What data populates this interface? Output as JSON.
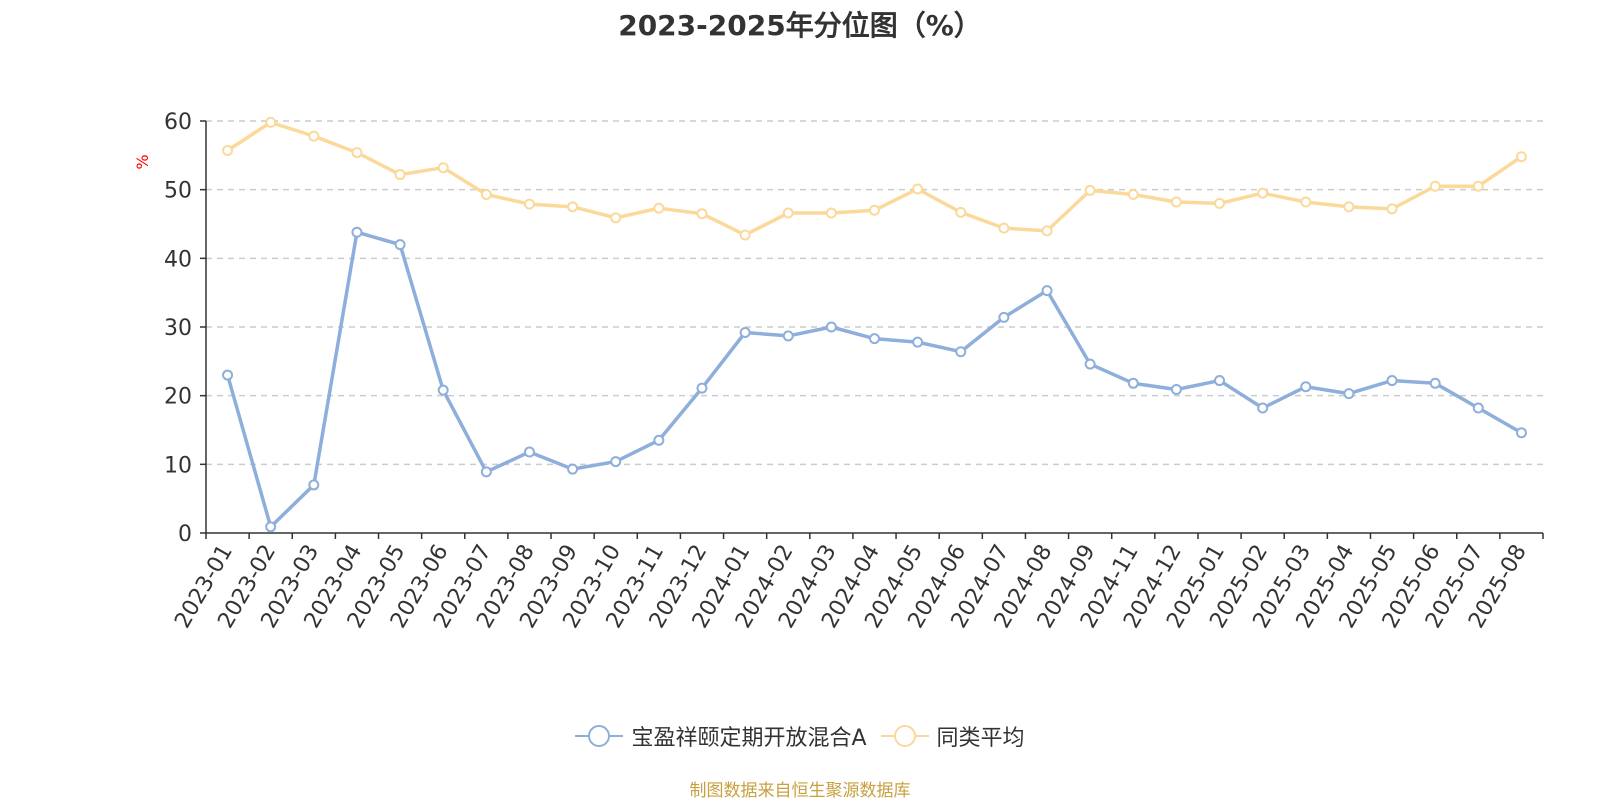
{
  "chart_data": {
    "type": "line",
    "title": "2023-2025年分位图（%）",
    "ylabel": "%",
    "ylim": [
      0,
      60
    ],
    "yticks": [
      0,
      10,
      20,
      30,
      40,
      50,
      60
    ],
    "grid": true,
    "legend_position": "bottom",
    "categories": [
      "2023-01",
      "2023-02",
      "2023-03",
      "2023-04",
      "2023-05",
      "2023-06",
      "2023-07",
      "2023-08",
      "2023-09",
      "2023-10",
      "2023-11",
      "2023-12",
      "2024-01",
      "2024-02",
      "2024-03",
      "2024-04",
      "2024-05",
      "2024-06",
      "2024-07",
      "2024-08",
      "2024-09",
      "2024-11",
      "2024-12",
      "2025-01",
      "2025-02",
      "2025-03",
      "2025-04",
      "2025-05",
      "2025-06",
      "2025-07",
      "2025-08"
    ],
    "series": [
      {
        "name": "宝盈祥颐定期开放混合A",
        "color": "#8eaedb",
        "values": [
          23.0,
          0.9,
          7.0,
          43.8,
          42.0,
          20.8,
          8.9,
          11.8,
          9.3,
          10.4,
          13.5,
          21.1,
          29.2,
          28.7,
          30.0,
          28.3,
          27.8,
          26.4,
          31.4,
          35.3,
          24.6,
          21.8,
          20.9,
          22.2,
          18.2,
          21.3,
          20.3,
          22.2,
          21.8,
          18.2,
          14.6
        ]
      },
      {
        "name": "同类平均",
        "color": "#fbd99a",
        "values": [
          55.7,
          59.8,
          57.8,
          55.4,
          52.2,
          53.2,
          49.3,
          47.9,
          47.5,
          45.9,
          47.3,
          46.5,
          43.4,
          46.6,
          46.6,
          47.0,
          50.1,
          46.7,
          44.4,
          44.0,
          49.9,
          49.3,
          48.2,
          48.0,
          49.5,
          48.2,
          47.5,
          47.2,
          50.5,
          50.5,
          54.8
        ]
      }
    ]
  },
  "source_text": "制图数据来自恒生聚源数据库"
}
